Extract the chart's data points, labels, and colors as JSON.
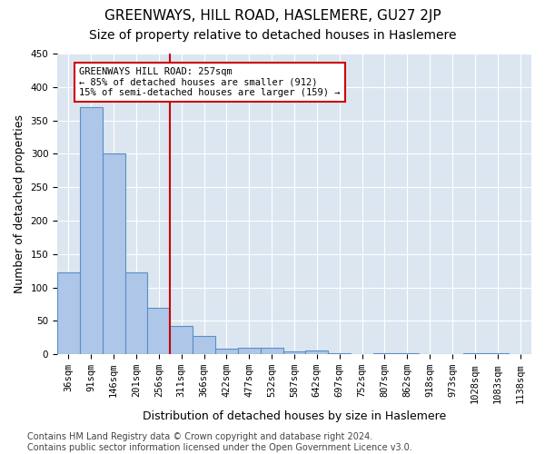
{
  "title": "GREENWAYS, HILL ROAD, HASLEMERE, GU27 2JP",
  "subtitle": "Size of property relative to detached houses in Haslemere",
  "xlabel": "Distribution of detached houses by size in Haslemere",
  "ylabel": "Number of detached properties",
  "bins": [
    "36sqm",
    "91sqm",
    "146sqm",
    "201sqm",
    "256sqm",
    "311sqm",
    "366sqm",
    "422sqm",
    "477sqm",
    "532sqm",
    "587sqm",
    "642sqm",
    "697sqm",
    "752sqm",
    "807sqm",
    "862sqm",
    "918sqm",
    "973sqm",
    "1028sqm",
    "1083sqm",
    "1138sqm"
  ],
  "values": [
    123,
    370,
    300,
    123,
    70,
    42,
    28,
    8,
    10,
    10,
    4,
    6,
    1,
    0,
    2,
    2,
    0,
    0,
    1,
    1,
    0
  ],
  "bar_color": "#aec6e8",
  "bar_edge_color": "#5b8ec4",
  "vline_x": 4.5,
  "vline_color": "#cc0000",
  "annotation_line1": "GREENWAYS HILL ROAD: 257sqm",
  "annotation_line2": "← 85% of detached houses are smaller (912)",
  "annotation_line3": "15% of semi-detached houses are larger (159) →",
  "annotation_box_color": "#ffffff",
  "annotation_box_edge_color": "#cc0000",
  "ylim": [
    0,
    450
  ],
  "yticks": [
    0,
    50,
    100,
    150,
    200,
    250,
    300,
    350,
    400,
    450
  ],
  "background_color": "#dce6f1",
  "footer_line1": "Contains HM Land Registry data © Crown copyright and database right 2024.",
  "footer_line2": "Contains public sector information licensed under the Open Government Licence v3.0.",
  "title_fontsize": 11,
  "subtitle_fontsize": 10,
  "xlabel_fontsize": 9,
  "ylabel_fontsize": 9,
  "tick_fontsize": 7.5,
  "footer_fontsize": 7
}
